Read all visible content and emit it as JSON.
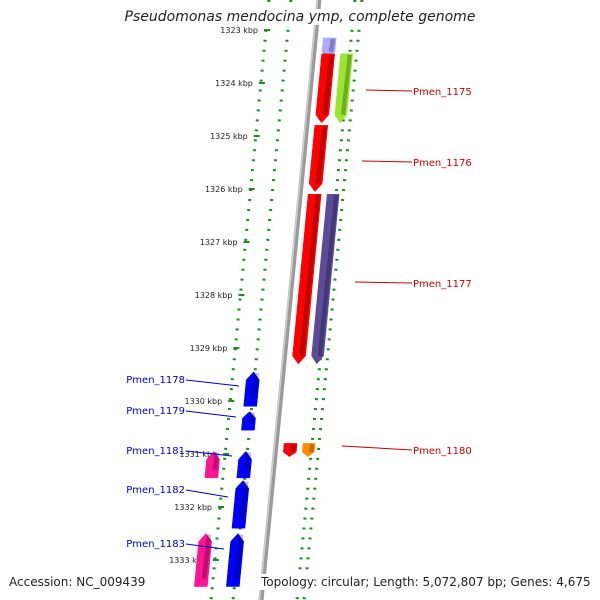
{
  "title": "Pseudomonas mendocina ymp, complete genome",
  "footer": {
    "accession": "Accession: NC_009439",
    "topology": "Topology: circular; Length: 5,072,807 bp; Genes: 4,675"
  },
  "colors": {
    "backbone": "#9a9a9a",
    "dotted_track": "#1e8c1e",
    "tick": "#1e8c1e",
    "label_right": "#cc0000",
    "label_left": "#0000cc",
    "gene_red": "#ff0000",
    "gene_blue": "#0000ff",
    "gene_pink": "#ff1493",
    "gene_orange": "#ff8c00",
    "gene_lime": "#99e62e",
    "gene_olive": "#6b8e23",
    "gene_purple": "#5b4b9a",
    "gene_lavender": "#aaaaff"
  },
  "scale": {
    "unit": "kbp",
    "ticks": [
      "1323 kbp",
      "1324 kbp",
      "1325 kbp",
      "1326 kbp",
      "1327 kbp",
      "1328 kbp",
      "1329 kbp",
      "1330 kbp",
      "1331 kbp",
      "1332 kbp",
      "1333 kbp"
    ]
  },
  "gene_labels": {
    "right": [
      "Pmen_1175",
      "Pmen_1176",
      "Pmen_1177",
      "Pmen_1180"
    ],
    "left": [
      "Pmen_1178",
      "Pmen_1179",
      "Pmen_1181",
      "Pmen_1182",
      "Pmen_1183"
    ]
  },
  "features": [
    {
      "track": "inner_right",
      "start_kbp": 1323.15,
      "end_kbp": 1323.55,
      "color": "lavender",
      "strand": "-"
    },
    {
      "track": "inner_right",
      "start_kbp": 1323.45,
      "end_kbp": 1324.75,
      "color": "red",
      "strand": "-"
    },
    {
      "track": "inner_right",
      "start_kbp": 1324.8,
      "end_kbp": 1326.05,
      "color": "red",
      "strand": "-"
    },
    {
      "track": "inner_right",
      "start_kbp": 1326.1,
      "end_kbp": 1329.3,
      "color": "red",
      "strand": "-"
    },
    {
      "track": "outer_right",
      "start_kbp": 1323.45,
      "end_kbp": 1324.75,
      "color": "lime",
      "strand": "-"
    },
    {
      "track": "outer_right",
      "start_kbp": 1326.1,
      "end_kbp": 1329.3,
      "color": "purple",
      "strand": "-"
    },
    {
      "track": "inner_right",
      "start_kbp": 1330.8,
      "end_kbp": 1331.05,
      "color": "red",
      "strand": "-"
    },
    {
      "track": "outer_right",
      "start_kbp": 1330.8,
      "end_kbp": 1331.05,
      "color": "orange",
      "strand": "-"
    },
    {
      "track": "inner_left",
      "start_kbp": 1329.45,
      "end_kbp": 1330.1,
      "color": "blue",
      "strand": "+"
    },
    {
      "track": "inner_left",
      "start_kbp": 1330.2,
      "end_kbp": 1330.55,
      "color": "blue",
      "strand": "+"
    },
    {
      "track": "inner_left",
      "start_kbp": 1330.95,
      "end_kbp": 1331.45,
      "color": "blue",
      "strand": "+"
    },
    {
      "track": "outer_left",
      "start_kbp": 1330.95,
      "end_kbp": 1331.45,
      "color": "pink",
      "strand": "+"
    },
    {
      "track": "inner_left",
      "start_kbp": 1331.5,
      "end_kbp": 1332.4,
      "color": "blue",
      "strand": "+"
    },
    {
      "track": "inner_left",
      "start_kbp": 1332.5,
      "end_kbp": 1333.5,
      "color": "blue",
      "strand": "+"
    },
    {
      "track": "outer_left",
      "start_kbp": 1332.5,
      "end_kbp": 1333.5,
      "color": "pink",
      "strand": "+"
    }
  ]
}
